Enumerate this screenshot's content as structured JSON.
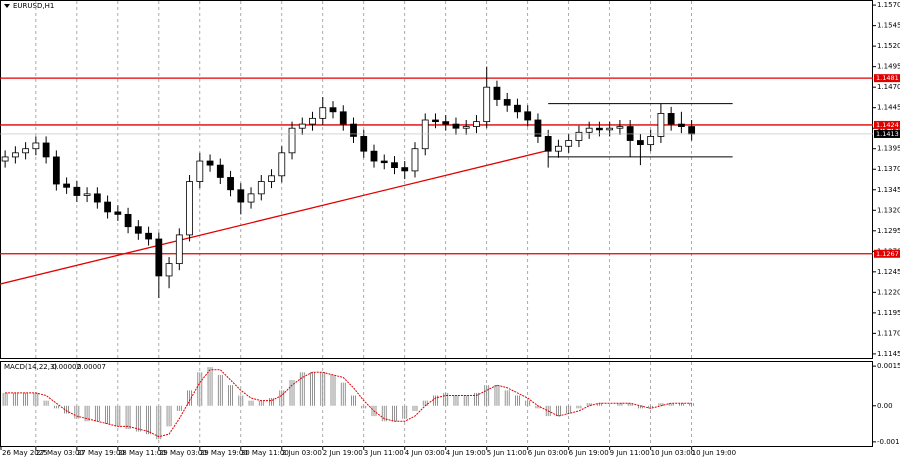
{
  "chart_data": {
    "type": "candlestick",
    "symbol": "EURUSD,H1",
    "open": [
      1.138,
      1.1385,
      1.139,
      1.1395,
      1.1402,
      1.1385,
      1.1352,
      1.1348,
      1.1338,
      1.134,
      1.133,
      1.1318,
      1.1315,
      1.13,
      1.1292,
      1.1285,
      1.124,
      1.1255,
      1.129,
      1.1355,
      1.138,
      1.1375,
      1.136,
      1.1345,
      1.133,
      1.134,
      1.1355,
      1.1362,
      1.139,
      1.142,
      1.1425,
      1.1432,
      1.1445,
      1.144,
      1.1425,
      1.141,
      1.1392,
      1.138,
      1.1378,
      1.1372,
      1.1368,
      1.1395,
      1.143,
      1.1428,
      1.1425,
      1.142,
      1.1422,
      1.1428,
      1.147,
      1.1455,
      1.1448,
      1.144,
      1.143,
      1.141,
      1.1392,
      1.1398,
      1.1405,
      1.1415,
      1.142,
      1.1418,
      1.142,
      1.1422,
      1.1405,
      1.14,
      1.141,
      1.1438,
      1.1425,
      1.1422
    ],
    "high": [
      1.1393,
      1.1398,
      1.1403,
      1.141,
      1.141,
      1.1393,
      1.136,
      1.1356,
      1.1348,
      1.1348,
      1.1338,
      1.1326,
      1.1323,
      1.1308,
      1.13,
      1.1293,
      1.1263,
      1.1298,
      1.1363,
      1.139,
      1.1388,
      1.1383,
      1.1368,
      1.1353,
      1.1348,
      1.1363,
      1.137,
      1.1398,
      1.1428,
      1.1433,
      1.144,
      1.1458,
      1.1453,
      1.1448,
      1.1433,
      1.1418,
      1.14,
      1.1388,
      1.1386,
      1.138,
      1.1403,
      1.1438,
      1.1438,
      1.1436,
      1.1433,
      1.143,
      1.1436,
      1.1495,
      1.1478,
      1.1463,
      1.1456,
      1.1448,
      1.1438,
      1.1418,
      1.1406,
      1.1413,
      1.1423,
      1.1428,
      1.1428,
      1.1428,
      1.143,
      1.143,
      1.1413,
      1.1418,
      1.145,
      1.1446,
      1.144,
      1.143
    ],
    "low": [
      1.1372,
      1.1377,
      1.1382,
      1.1387,
      1.1377,
      1.1344,
      1.134,
      1.133,
      1.133,
      1.1322,
      1.131,
      1.1307,
      1.1292,
      1.1284,
      1.1277,
      1.1213,
      1.1225,
      1.1247,
      1.1282,
      1.1347,
      1.1367,
      1.1352,
      1.1337,
      1.1315,
      1.1322,
      1.1332,
      1.1347,
      1.1354,
      1.1382,
      1.1412,
      1.1417,
      1.1424,
      1.1432,
      1.1417,
      1.1402,
      1.1384,
      1.1372,
      1.137,
      1.1364,
      1.1358,
      1.136,
      1.1387,
      1.142,
      1.1417,
      1.1412,
      1.1412,
      1.1414,
      1.142,
      1.1447,
      1.144,
      1.1432,
      1.1422,
      1.1402,
      1.1372,
      1.1384,
      1.139,
      1.1397,
      1.1407,
      1.141,
      1.141,
      1.1412,
      1.1385,
      1.1375,
      1.1392,
      1.1402,
      1.1417,
      1.1414,
      1.1405
    ],
    "close": [
      1.1385,
      1.139,
      1.1395,
      1.1402,
      1.1385,
      1.1352,
      1.1348,
      1.1338,
      1.134,
      1.133,
      1.1318,
      1.1315,
      1.13,
      1.1292,
      1.1285,
      1.124,
      1.1255,
      1.129,
      1.1355,
      1.138,
      1.1375,
      1.136,
      1.1345,
      1.133,
      1.134,
      1.1355,
      1.1362,
      1.139,
      1.142,
      1.1425,
      1.1432,
      1.1445,
      1.144,
      1.1425,
      1.141,
      1.1392,
      1.138,
      1.1378,
      1.1372,
      1.1368,
      1.1395,
      1.143,
      1.1428,
      1.1425,
      1.142,
      1.1422,
      1.1428,
      1.147,
      1.1455,
      1.1448,
      1.144,
      1.143,
      1.141,
      1.1392,
      1.1398,
      1.1405,
      1.1415,
      1.142,
      1.1418,
      1.142,
      1.1422,
      1.1405,
      1.14,
      1.141,
      1.1438,
      1.1425,
      1.1422,
      1.1413
    ],
    "xlim": [
      -0.5,
      84.7
    ],
    "ylim": [
      1.114,
      1.1575
    ],
    "yticks": [
      {
        "value": 1.157,
        "label": "1.1570"
      },
      {
        "value": 1.1545,
        "label": "1.1545"
      },
      {
        "value": 1.152,
        "label": "1.1520"
      },
      {
        "value": 1.1495,
        "label": "1.1495"
      },
      {
        "value": 1.147,
        "label": "1.1470"
      },
      {
        "value": 1.1445,
        "label": "1.1445"
      },
      {
        "value": 1.142,
        "label": "1.1420"
      },
      {
        "value": 1.1395,
        "label": "1.1395"
      },
      {
        "value": 1.137,
        "label": "1.1370"
      },
      {
        "value": 1.1345,
        "label": "1.1345"
      },
      {
        "value": 1.132,
        "label": "1.1320"
      },
      {
        "value": 1.1295,
        "label": "1.1295"
      },
      {
        "value": 1.127,
        "label": "1.1270"
      },
      {
        "value": 1.1245,
        "label": "1.1245"
      },
      {
        "value": 1.122,
        "label": "1.1220"
      },
      {
        "value": 1.1195,
        "label": "1.1195"
      },
      {
        "value": 1.117,
        "label": "1.1170"
      },
      {
        "value": 1.1145,
        "label": "1.1145"
      }
    ],
    "xticks": [
      {
        "value": -1,
        "label": "26 May 2025"
      },
      {
        "value": 3,
        "label": "27 May 03:00"
      },
      {
        "value": 7,
        "label": "27 May 19:00"
      },
      {
        "value": 11,
        "label": "28 May 11:00"
      },
      {
        "value": 15,
        "label": "29 May 03:00"
      },
      {
        "value": 19,
        "label": "29 May 19:00"
      },
      {
        "value": 23,
        "label": "30 May 11:00"
      },
      {
        "value": 27,
        "label": "2 Jun 03:00"
      },
      {
        "value": 31,
        "label": "2 Jun 19:00"
      },
      {
        "value": 35,
        "label": "3 Jun 11:00"
      },
      {
        "value": 39,
        "label": "4 Jun 03:00"
      },
      {
        "value": 43,
        "label": "4 Jun 19:00"
      },
      {
        "value": 47,
        "label": "5 Jun 11:00"
      },
      {
        "value": 51,
        "label": "6 Jun 03:00"
      },
      {
        "value": 55,
        "label": "6 Jun 19:00"
      },
      {
        "value": 59,
        "label": "9 Jun 11:00"
      },
      {
        "value": 63,
        "label": "10 Jun 03:00"
      },
      {
        "value": 67,
        "label": "10 Jun 19:00"
      }
    ],
    "grid": true,
    "levels": [
      {
        "value": 1.1481,
        "color": "#e00000"
      },
      {
        "value": 1.1424,
        "color": "#e00000"
      },
      {
        "value": 1.1267,
        "color": "#e00000"
      }
    ],
    "current_price": 1.1413,
    "trendline": {
      "x": [
        0,
        53
      ],
      "y": [
        1.1232,
        1.1393
      ],
      "color": "#e00000"
    },
    "range_lines": [
      {
        "x": [
          53,
          71
        ],
        "y": 1.145
      },
      {
        "x": [
          53,
          71
        ],
        "y": 1.1385
      }
    ],
    "indicator": {
      "type": "macd",
      "name": "MACD(14,22,3)",
      "main_value": 2e-05,
      "signal_value": 7e-05,
      "histogram": [
        0.0005,
        0.0005,
        0.0005,
        0.0005,
        0.0002,
        -0.0001,
        -0.0003,
        -0.0005,
        -0.0006,
        -0.0006,
        -0.0007,
        -0.0008,
        -0.0009,
        -0.001,
        -0.0011,
        -0.0013,
        -0.0008,
        -0.0002,
        0.0006,
        0.0013,
        0.0015,
        0.0012,
        0.0008,
        0.0004,
        0.0002,
        0.0002,
        0.0003,
        0.0006,
        0.001,
        0.0013,
        0.0013,
        0.0013,
        0.0012,
        0.0009,
        0.0004,
        -0.0001,
        -0.0004,
        -0.0006,
        -0.0006,
        -0.0005,
        -0.0002,
        0.0002,
        0.0004,
        0.0005,
        0.0004,
        0.0004,
        0.0005,
        0.0008,
        0.0008,
        0.0006,
        0.0004,
        0.0002,
        -0.0001,
        -0.0004,
        -0.0004,
        -0.0003,
        -0.0001,
        0.0001,
        0.0001,
        0.0,
        0.0001,
        0.0001,
        -0.0001,
        -0.0001,
        0.0001,
        0.0001,
        0.0001,
        0.0001
      ],
      "signal": [
        0.0005,
        0.0005,
        0.0005,
        0.0005,
        0.0004,
        0.0001,
        -0.0002,
        -0.0004,
        -0.0005,
        -0.0006,
        -0.0007,
        -0.0008,
        -0.0008,
        -0.0009,
        -0.001,
        -0.0012,
        -0.0011,
        -0.0005,
        0.0002,
        0.0009,
        0.0014,
        0.0014,
        0.001,
        0.0006,
        0.0003,
        0.0002,
        0.0002,
        0.0004,
        0.0008,
        0.0011,
        0.0013,
        0.0013,
        0.0012,
        0.0011,
        0.0007,
        0.0002,
        -0.0002,
        -0.0005,
        -0.0006,
        -0.0006,
        -0.0004,
        0.0,
        0.0003,
        0.0004,
        0.0004,
        0.0004,
        0.0004,
        0.0006,
        0.0008,
        0.0007,
        0.0005,
        0.0003,
        0.0,
        -0.0002,
        -0.0004,
        -0.0003,
        -0.0002,
        0.0,
        0.0001,
        0.0001,
        0.0001,
        0.0001,
        0.0,
        -0.0001,
        0.0,
        0.0001,
        0.0001,
        0.0001
      ],
      "signal_color": "#e00000",
      "ylim": [
        -0.0016,
        0.0017
      ],
      "yticks": [
        0.00154,
        {
          "value": 0,
          "label": "0.00"
        },
        -0.0014
      ]
    }
  }
}
